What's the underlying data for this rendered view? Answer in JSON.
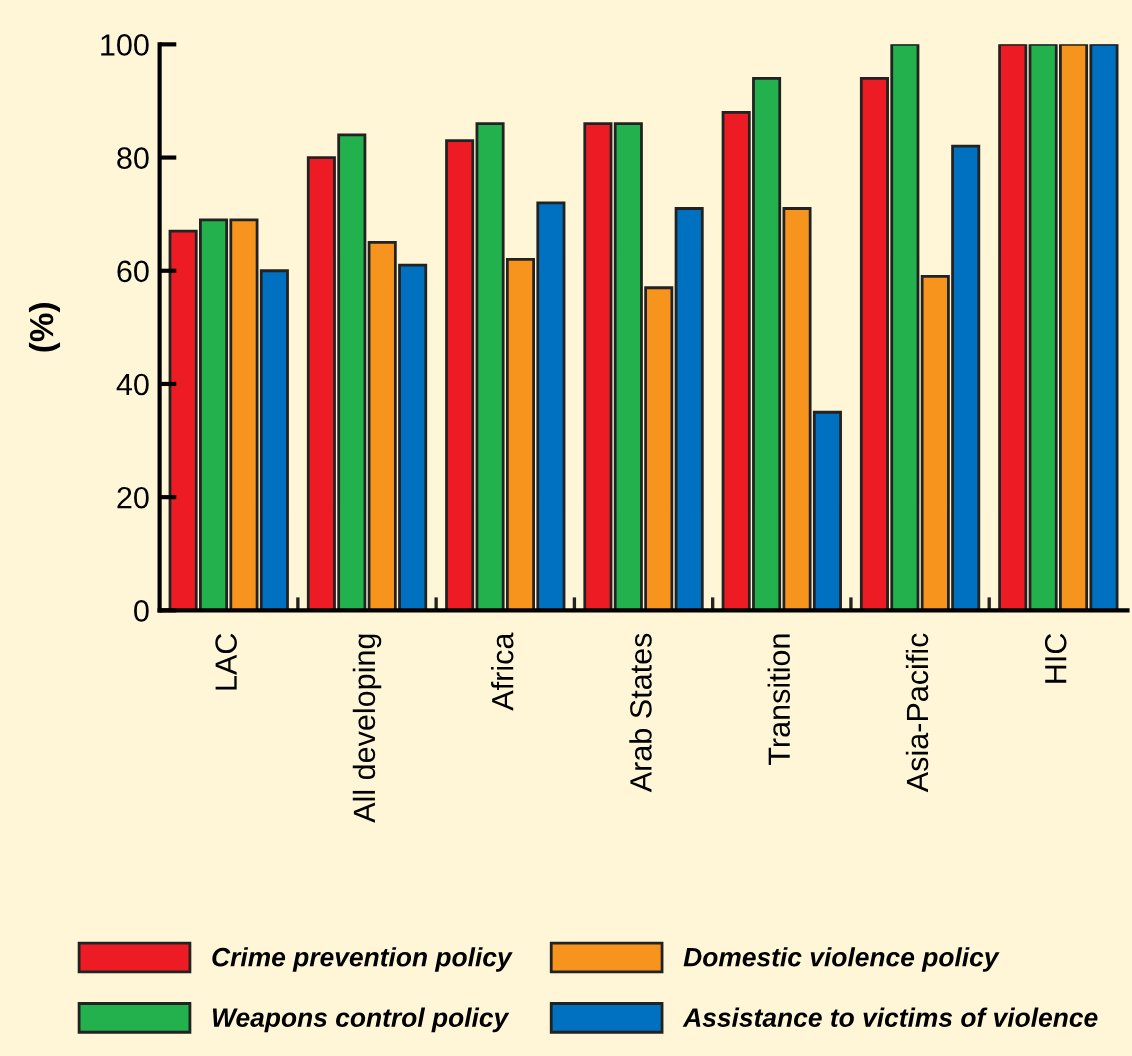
{
  "chart_data": {
    "type": "bar",
    "ylabel": "(%)",
    "categories": [
      "LAC",
      "All developing",
      "Africa",
      "Arab States",
      "Transition",
      "Asia-Pacific",
      "HIC"
    ],
    "series": [
      {
        "name": "Crime prevention policy",
        "color": "#ed1c24",
        "values": [
          67,
          80,
          83,
          86,
          88,
          94,
          100
        ]
      },
      {
        "name": "Weapons control policy",
        "color": "#22b14c",
        "values": [
          69,
          84,
          86,
          86,
          94,
          100,
          100
        ]
      },
      {
        "name": "Domestic violence policy",
        "color": "#f7941d",
        "values": [
          69,
          65,
          62,
          57,
          71,
          59,
          100
        ]
      },
      {
        "name": "Assistance to victims of violence",
        "color": "#0070c0",
        "values": [
          60,
          61,
          72,
          71,
          35,
          82,
          100
        ]
      }
    ],
    "ylim": [
      0,
      100
    ],
    "yticks": [
      0,
      20,
      40,
      60,
      80,
      100
    ],
    "grid": false,
    "legend": "bottom"
  }
}
